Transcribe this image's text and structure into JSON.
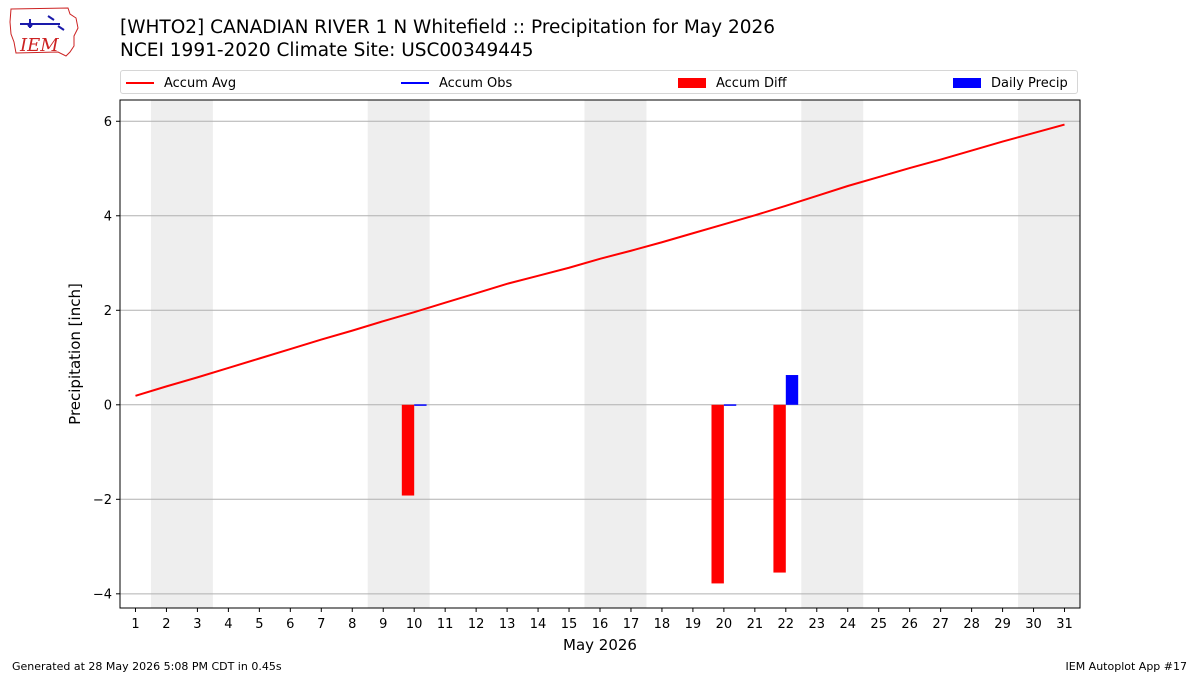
{
  "header": {
    "title_line1": "[WHTO2] CANADIAN RIVER 1 N Whitefield :: Precipitation for May 2026",
    "title_line2": "NCEI 1991-2020 Climate Site: USC00349445",
    "logo_text": "IEM",
    "logo_icon": "iowa-state-outline-icon"
  },
  "legend": {
    "placement": "top",
    "items": [
      {
        "label": "Accum Avg",
        "kind": "line",
        "color": "#ff0000"
      },
      {
        "label": "Accum Obs",
        "kind": "line",
        "color": "#0000ff"
      },
      {
        "label": "Accum Diff",
        "kind": "bar",
        "color": "#ff0000"
      },
      {
        "label": "Daily Precip",
        "kind": "bar",
        "color": "#0000ff"
      }
    ]
  },
  "footer": {
    "left": "Generated at 28 May 2026 5:08 PM CDT in 0.45s",
    "right": "IEM Autoplot App #17"
  },
  "chart_data": {
    "type": "line",
    "title": "[WHTO2] CANADIAN RIVER 1 N Whitefield :: Precipitation for May 2026",
    "xlabel": "May 2026",
    "ylabel": "Precipitation [inch]",
    "xlim": [
      0.5,
      31.5
    ],
    "ylim": [
      -4.3,
      6.45
    ],
    "grid": "y",
    "x": [
      1,
      2,
      3,
      4,
      5,
      6,
      7,
      8,
      9,
      10,
      11,
      12,
      13,
      14,
      15,
      16,
      17,
      18,
      19,
      20,
      21,
      22,
      23,
      24,
      25,
      26,
      27,
      28,
      29,
      30,
      31
    ],
    "x_ticks": [
      1,
      2,
      3,
      4,
      5,
      6,
      7,
      8,
      9,
      10,
      11,
      12,
      13,
      14,
      15,
      16,
      17,
      18,
      19,
      20,
      21,
      22,
      23,
      24,
      25,
      26,
      27,
      28,
      29,
      30,
      31
    ],
    "y_ticks": [
      -4,
      -2,
      0,
      2,
      4,
      6
    ],
    "weekend_shading": [
      [
        1.5,
        3.5
      ],
      [
        8.5,
        10.5
      ],
      [
        15.5,
        17.5
      ],
      [
        22.5,
        24.5
      ],
      [
        29.5,
        31.5
      ]
    ],
    "shading_color": "#eeeeee",
    "series": [
      {
        "name": "Accum Avg",
        "type": "line",
        "color": "#ff0000",
        "values": [
          0.19,
          0.39,
          0.58,
          0.78,
          0.98,
          1.18,
          1.38,
          1.57,
          1.77,
          1.96,
          2.16,
          2.36,
          2.56,
          2.73,
          2.9,
          3.09,
          3.26,
          3.44,
          3.63,
          3.82,
          4.01,
          4.21,
          4.42,
          4.63,
          4.82,
          5.01,
          5.19,
          5.38,
          5.57,
          5.75,
          5.93
        ]
      },
      {
        "name": "Accum Obs",
        "type": "line",
        "color": "#0000ff",
        "values": [
          null,
          null,
          null,
          null,
          null,
          null,
          null,
          null,
          null,
          null,
          null,
          null,
          null,
          null,
          null,
          null,
          null,
          null,
          null,
          null,
          null,
          null,
          null,
          null,
          null,
          null,
          null,
          null,
          null,
          null,
          null
        ]
      },
      {
        "name": "Accum Diff",
        "type": "bar",
        "color": "#ff0000",
        "bars": [
          {
            "x": 10,
            "value": -1.92
          },
          {
            "x": 20,
            "value": -3.78
          },
          {
            "x": 22,
            "value": -3.55
          }
        ]
      },
      {
        "name": "Daily Precip",
        "type": "bar",
        "color": "#0000ff",
        "bars": [
          {
            "x": 10,
            "value": 0.01
          },
          {
            "x": 20,
            "value": 0.01
          },
          {
            "x": 22,
            "value": 0.63
          }
        ]
      }
    ]
  }
}
